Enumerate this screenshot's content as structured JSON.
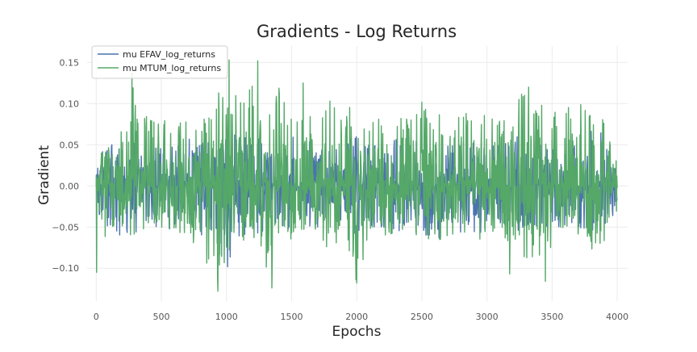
{
  "chart_data": {
    "type": "line",
    "title": "Gradients - Log Returns",
    "xlabel": "Epochs",
    "ylabel": "Gradient",
    "xlim": [
      -70,
      4080
    ],
    "ylim": [
      -0.14,
      0.17
    ],
    "xticks": [
      0,
      500,
      1000,
      1500,
      2000,
      2500,
      3000,
      3500,
      4000
    ],
    "xtick_labels": [
      "0",
      "500",
      "1000",
      "1500",
      "2000",
      "2500",
      "3000",
      "3500",
      "4000"
    ],
    "yticks": [
      -0.1,
      -0.05,
      0.0,
      0.05,
      0.1,
      0.15
    ],
    "ytick_labels": [
      "−0.10",
      "−0.05",
      "0.00",
      "0.05",
      "0.10",
      "0.15"
    ],
    "grid": true,
    "legend_position": "top-left",
    "series": [
      {
        "name": "mu EFAV_log_returns",
        "color": "#4c72b0",
        "x": [
          0,
          100,
          200,
          300,
          400,
          500,
          600,
          700,
          800,
          900,
          1000,
          1100,
          1200,
          1300,
          1400,
          1500,
          1600,
          1700,
          1800,
          1900,
          2000,
          2100,
          2200,
          2300,
          2400,
          2500,
          2600,
          2700,
          2800,
          2900,
          3000,
          3100,
          3200,
          3300,
          3400,
          3500,
          3600,
          3700,
          3800,
          3900,
          4000
        ],
        "min": [
          -0.03,
          -0.06,
          -0.07,
          -0.06,
          -0.05,
          -0.05,
          -0.087,
          -0.05,
          -0.06,
          -0.07,
          -0.102,
          -0.06,
          -0.06,
          -0.06,
          -0.05,
          -0.055,
          -0.06,
          -0.05,
          -0.05,
          -0.05,
          -0.06,
          -0.05,
          -0.05,
          -0.06,
          -0.05,
          -0.06,
          -0.07,
          -0.06,
          -0.06,
          -0.06,
          -0.06,
          -0.05,
          -0.06,
          -0.06,
          -0.05,
          -0.06,
          -0.05,
          -0.05,
          -0.06,
          -0.05,
          -0.03
        ],
        "max": [
          0.03,
          0.06,
          0.05,
          0.06,
          0.06,
          0.06,
          0.05,
          0.06,
          0.055,
          0.06,
          0.07,
          0.06,
          0.06,
          0.06,
          0.05,
          0.06,
          0.06,
          0.05,
          0.05,
          0.055,
          0.06,
          0.05,
          0.05,
          0.06,
          0.05,
          0.06,
          0.05,
          0.05,
          0.06,
          0.055,
          0.06,
          0.05,
          0.06,
          0.06,
          0.05,
          0.06,
          0.055,
          0.06,
          0.075,
          0.07,
          0.03
        ]
      },
      {
        "name": "mu MTUM_log_returns",
        "color": "#55a868",
        "x": [
          0,
          100,
          200,
          300,
          400,
          500,
          600,
          700,
          800,
          900,
          1000,
          1100,
          1200,
          1300,
          1400,
          1500,
          1600,
          1700,
          1800,
          1900,
          2000,
          2100,
          2200,
          2300,
          2400,
          2500,
          2600,
          2700,
          2800,
          2900,
          3000,
          3100,
          3200,
          3300,
          3400,
          3500,
          3600,
          3700,
          3800,
          3900,
          4000
        ],
        "min": [
          -0.105,
          -0.05,
          -0.06,
          -0.06,
          -0.06,
          -0.05,
          -0.07,
          -0.06,
          -0.08,
          -0.128,
          -0.09,
          -0.08,
          -0.07,
          -0.124,
          -0.06,
          -0.07,
          -0.06,
          -0.065,
          -0.09,
          -0.06,
          -0.118,
          -0.06,
          -0.07,
          -0.08,
          -0.06,
          -0.08,
          -0.07,
          -0.06,
          -0.06,
          -0.07,
          -0.06,
          -0.06,
          -0.107,
          -0.09,
          -0.116,
          -0.07,
          -0.06,
          -0.06,
          -0.08,
          -0.07,
          -0.03
        ],
        "max": [
          0.03,
          0.06,
          0.08,
          0.137,
          0.08,
          0.09,
          0.07,
          0.09,
          0.08,
          0.09,
          0.153,
          0.11,
          0.152,
          0.09,
          0.12,
          0.08,
          0.09,
          0.08,
          0.125,
          0.1,
          0.09,
          0.1,
          0.08,
          0.1,
          0.09,
          0.11,
          0.09,
          0.08,
          0.1,
          0.08,
          0.1,
          0.08,
          0.11,
          0.12,
          0.1,
          0.09,
          0.1,
          0.11,
          0.1,
          0.08,
          0.03
        ],
        "spikes": [
          {
            "x": 2,
            "y": -0.105
          },
          {
            "x": 275,
            "y": 0.137
          },
          {
            "x": 935,
            "y": -0.128
          },
          {
            "x": 1020,
            "y": 0.153
          },
          {
            "x": 1240,
            "y": 0.152
          },
          {
            "x": 1350,
            "y": -0.124
          },
          {
            "x": 1590,
            "y": 0.125
          },
          {
            "x": 2000,
            "y": -0.118
          },
          {
            "x": 3175,
            "y": -0.107
          },
          {
            "x": 3290,
            "y": 0.11
          },
          {
            "x": 3320,
            "y": 0.12
          },
          {
            "x": 3450,
            "y": -0.116
          }
        ]
      }
    ]
  }
}
